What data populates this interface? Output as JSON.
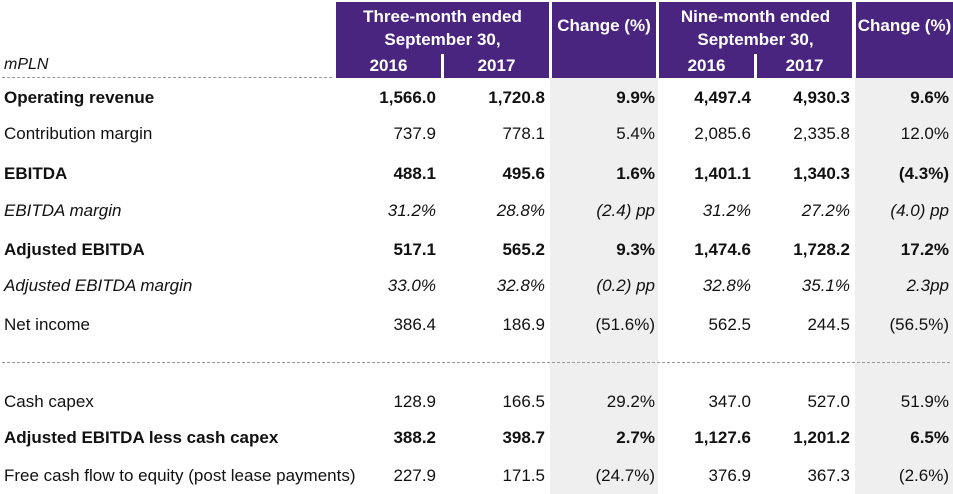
{
  "header": {
    "unit": "mPLN",
    "three_month_title": "Three-month ended September 30,",
    "nine_month_title": "Nine-month ended September 30,",
    "change_label": "Change (%)",
    "year_a": "2016",
    "year_b": "2017"
  },
  "colors": {
    "header_bg": "#4a2580",
    "shade": "#efefef"
  },
  "rows": [
    {
      "label": "Operating revenue",
      "style": "bold",
      "q2016": "1,566.0",
      "q2017": "1,720.8",
      "q_change": "9.9%",
      "n2016": "4,497.4",
      "n2017": "4,930.3",
      "n_change": "9.6%"
    },
    {
      "label": "Contribution margin",
      "style": "normal",
      "q2016": "737.9",
      "q2017": "778.1",
      "q_change": "5.4%",
      "n2016": "2,085.6",
      "n2017": "2,335.8",
      "n_change": "12.0%"
    },
    {
      "label": "EBITDA",
      "style": "bold",
      "q2016": "488.1",
      "q2017": "495.6",
      "q_change": "1.6%",
      "n2016": "1,401.1",
      "n2017": "1,340.3",
      "n_change": "(4.3%)"
    },
    {
      "label": "EBITDA margin",
      "style": "italic",
      "q2016": "31.2%",
      "q2017": "28.8%",
      "q_change": "(2.4) pp",
      "n2016": "31.2%",
      "n2017": "27.2%",
      "n_change": "(4.0) pp"
    },
    {
      "label": "Adjusted EBITDA",
      "style": "bold",
      "q2016": "517.1",
      "q2017": "565.2",
      "q_change": "9.3%",
      "n2016": "1,474.6",
      "n2017": "1,728.2",
      "n_change": "17.2%"
    },
    {
      "label": "Adjusted EBITDA margin",
      "style": "italic",
      "q2016": "33.0%",
      "q2017": "32.8%",
      "q_change": "(0.2) pp",
      "n2016": "32.8%",
      "n2017": "35.1%",
      "n_change": "2.3pp"
    },
    {
      "label": "Net income",
      "style": "normal",
      "q2016": "386.4",
      "q2017": "186.9",
      "q_change": "(51.6%)",
      "n2016": "562.5",
      "n2017": "244.5",
      "n_change": "(56.5%)"
    },
    {
      "label": "Cash capex",
      "style": "normal",
      "q2016": "128.9",
      "q2017": "166.5",
      "q_change": "29.2%",
      "n2016": "347.0",
      "n2017": "527.0",
      "n_change": "51.9%"
    },
    {
      "label": "Adjusted EBITDA less cash capex",
      "style": "bold",
      "q2016": "388.2",
      "q2017": "398.7",
      "q_change": "2.7%",
      "n2016": "1,127.6",
      "n2017": "1,201.2",
      "n_change": "6.5%"
    },
    {
      "label": "Free cash flow to equity (post lease payments)",
      "style": "normal",
      "q2016": "227.9",
      "q2017": "171.5",
      "q_change": "(24.7%)",
      "n2016": "376.9",
      "n2017": "367.3",
      "n_change": "(2.6%)"
    }
  ]
}
